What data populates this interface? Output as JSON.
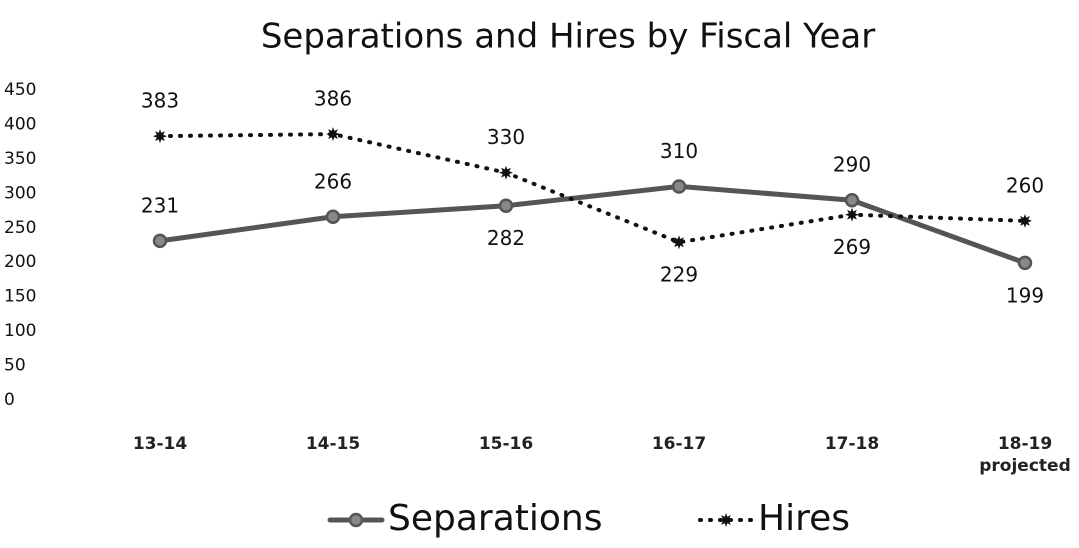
{
  "chart_data": {
    "type": "line",
    "title": "Separations and Hires by Fiscal Year",
    "categories": [
      "13-14",
      "14-15",
      "15-16",
      "16-17",
      "17-18",
      "18-19\nprojected"
    ],
    "series": [
      {
        "name": "Separations",
        "color": "#555555",
        "values": [
          231,
          266,
          282,
          310,
          290,
          199
        ]
      },
      {
        "name": "Hires",
        "color": "#111111",
        "values": [
          383,
          386,
          330,
          229,
          269,
          260
        ]
      }
    ],
    "ylim": [
      0,
      450
    ],
    "yticks": [
      0,
      50,
      100,
      150,
      200,
      250,
      300,
      350,
      400,
      450
    ],
    "grid": false,
    "legend": "bottom"
  }
}
